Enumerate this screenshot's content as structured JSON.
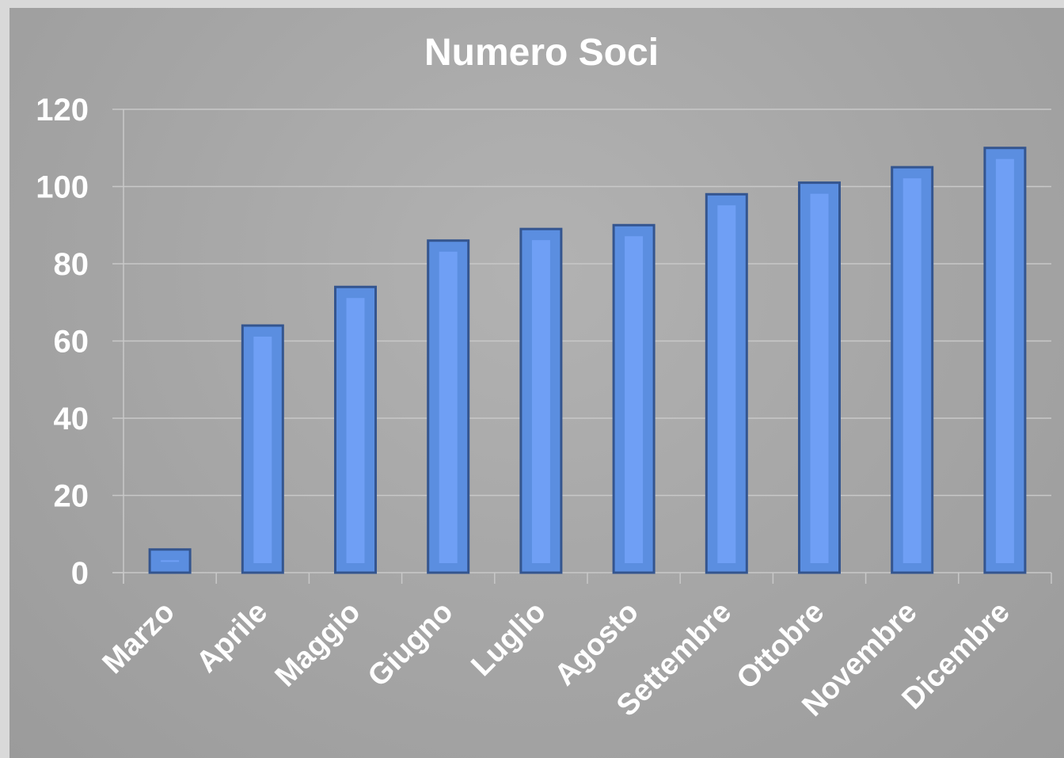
{
  "chart_data": {
    "type": "bar",
    "title": "Numero Soci",
    "xlabel": "",
    "ylabel": "",
    "categories": [
      "Marzo",
      "Aprile",
      "Maggio",
      "Giugno",
      "Luglio",
      "Agosto",
      "Settembre",
      "Ottobre",
      "Novembre",
      "Dicembre"
    ],
    "values": [
      6,
      64,
      74,
      86,
      89,
      90,
      98,
      101,
      105,
      110
    ],
    "ylim": [
      0,
      120
    ],
    "yticks": [
      0,
      20,
      40,
      60,
      80,
      100,
      120
    ],
    "grid": true,
    "legend": "none"
  },
  "colors": {
    "background": "#a6a6a6",
    "outer_border": "#d9d9d9",
    "bar_fill": "#5b8ee0",
    "bar_highlight": "#6f9ff5",
    "bar_stroke": "#34558f",
    "gridline": "#c8c8c8",
    "text": "#ffffff"
  }
}
